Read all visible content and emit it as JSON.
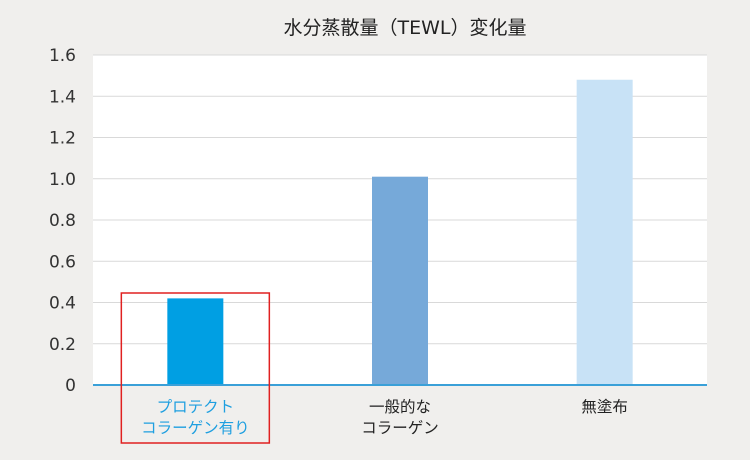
{
  "chart_data": {
    "type": "bar",
    "title": "水分蒸散量（TEWL）変化量",
    "categories": [
      [
        "プロテクト",
        "コラーゲン有り"
      ],
      [
        "一般的な",
        "コラーゲン"
      ],
      [
        "無塗布"
      ]
    ],
    "values": [
      0.42,
      1.01,
      1.48
    ],
    "bar_colors": [
      "#009fe3",
      "#76a9d9",
      "#c8e2f6"
    ],
    "highlight_index": 0,
    "highlight_color": "#e02020",
    "highlight_text_color": "#1e9fe0",
    "ylim": [
      0,
      1.6
    ],
    "yticks": [
      "0",
      "0.2",
      "0.4",
      "0.6",
      "0.8",
      "1.0",
      "1.2",
      "1.4",
      "1.6"
    ],
    "xlabel": "",
    "ylabel": "",
    "grid": true,
    "axis_color": "#3aa0d8",
    "grid_color": "#d9d9d9",
    "plot_background": "#ffffff"
  }
}
